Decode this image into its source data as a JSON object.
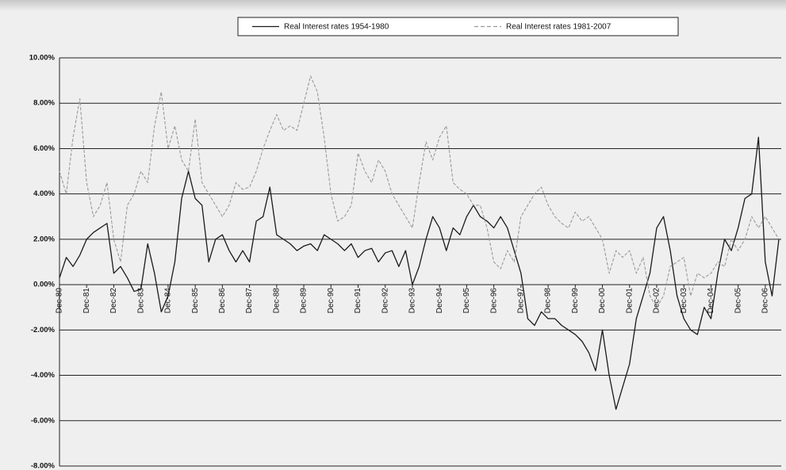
{
  "chart_data": {
    "type": "line",
    "categories": [
      "Dec-80",
      null,
      null,
      null,
      "Dec-81",
      null,
      null,
      null,
      "Dec-82",
      null,
      null,
      null,
      "Dec-83",
      null,
      null,
      null,
      "Dec-84",
      null,
      null,
      null,
      "Dec-85",
      null,
      null,
      null,
      "Dec-86",
      null,
      null,
      null,
      "Dec-87",
      null,
      null,
      null,
      "Dec-88",
      null,
      null,
      null,
      "Dec-89",
      null,
      null,
      null,
      "Dec-90",
      null,
      null,
      null,
      "Dec-91",
      null,
      null,
      null,
      "Dec-92",
      null,
      null,
      null,
      "Dec-93",
      null,
      null,
      null,
      "Dec-94",
      null,
      null,
      null,
      "Dec-95",
      null,
      null,
      null,
      "Dec-96",
      null,
      null,
      null,
      "Dec-97",
      null,
      null,
      null,
      "Dec-98",
      null,
      null,
      null,
      "Dec-99",
      null,
      null,
      null,
      "Dec-00",
      null,
      null,
      null,
      "Dec-01",
      null,
      null,
      null,
      "Dec-02",
      null,
      null,
      null,
      "Dec-03",
      null,
      null,
      null,
      "Dec-04",
      null,
      null,
      null,
      "Dec-05",
      null,
      null,
      null,
      "Dec-06",
      null,
      null
    ],
    "series": [
      {
        "name": "Real Interest rates 1954-1980",
        "color": "#1a1a1a",
        "dash": false,
        "values": [
          0.3,
          1.2,
          0.8,
          1.3,
          2.0,
          2.3,
          2.5,
          2.7,
          0.5,
          0.8,
          0.3,
          -0.3,
          -0.2,
          1.8,
          0.5,
          -1.2,
          -0.5,
          1.0,
          3.8,
          5.0,
          3.8,
          3.5,
          1.0,
          2.0,
          2.2,
          1.5,
          1.0,
          1.5,
          1.0,
          2.8,
          3.0,
          4.3,
          2.2,
          2.0,
          1.8,
          1.5,
          1.7,
          1.8,
          1.5,
          2.2,
          2.0,
          1.8,
          1.5,
          1.8,
          1.2,
          1.5,
          1.6,
          1.0,
          1.4,
          1.5,
          0.8,
          1.5,
          0.0,
          0.8,
          2.0,
          3.0,
          2.5,
          1.5,
          2.5,
          2.2,
          3.0,
          3.5,
          3.0,
          2.8,
          2.5,
          3.0,
          2.5,
          1.5,
          0.5,
          -1.5,
          -1.8,
          -1.2,
          -1.5,
          -1.5,
          -1.8,
          -2.0,
          -2.2,
          -2.5,
          -3.0,
          -3.8,
          -2.0,
          -4.0,
          -5.5,
          -4.5,
          -3.5,
          -1.5,
          -0.5,
          0.5,
          2.5,
          3.0,
          1.5,
          -0.5,
          -1.5,
          -2.0,
          -2.2,
          -1.0,
          -1.5,
          0.5,
          2.0,
          1.5,
          2.5,
          3.8,
          4.0,
          6.5,
          1.0,
          -0.5,
          2.0
        ]
      },
      {
        "name": "Real Interest rates 1981-2007",
        "color": "#9a9a9a",
        "dash": true,
        "values": [
          5.0,
          4.0,
          6.5,
          8.2,
          4.5,
          3.0,
          3.5,
          4.5,
          2.0,
          1.0,
          3.5,
          4.0,
          5.0,
          4.5,
          7.0,
          8.5,
          6.0,
          7.0,
          5.5,
          5.0,
          7.3,
          4.5,
          4.0,
          3.5,
          3.0,
          3.5,
          4.5,
          4.2,
          4.3,
          5.0,
          6.0,
          6.8,
          7.5,
          6.8,
          7.0,
          6.8,
          8.0,
          9.2,
          8.5,
          6.5,
          4.0,
          2.8,
          3.0,
          3.5,
          5.8,
          5.0,
          4.5,
          5.5,
          5.0,
          4.0,
          3.5,
          3.0,
          2.5,
          4.5,
          6.3,
          5.5,
          6.5,
          7.0,
          4.5,
          4.2,
          4.0,
          3.5,
          3.5,
          2.5,
          1.0,
          0.7,
          1.5,
          1.0,
          3.0,
          3.5,
          4.0,
          4.3,
          3.5,
          3.0,
          2.7,
          2.5,
          3.2,
          2.8,
          3.0,
          2.5,
          2.0,
          0.5,
          1.5,
          1.2,
          1.5,
          0.5,
          1.2,
          -0.5,
          -1.0,
          -0.5,
          0.8,
          1.0,
          1.2,
          -0.5,
          0.5,
          0.3,
          0.5,
          1.0,
          0.8,
          2.0,
          1.5,
          2.0,
          3.0,
          2.5,
          3.0,
          2.5,
          2.0
        ]
      }
    ],
    "ylim": [
      -8,
      10
    ],
    "yticks": [
      {
        "value": 10,
        "label": "10.00%"
      },
      {
        "value": 8,
        "label": "8.00%"
      },
      {
        "value": 6,
        "label": "6.00%"
      },
      {
        "value": 4,
        "label": "4.00%"
      },
      {
        "value": 2,
        "label": "2.00%"
      },
      {
        "value": 0,
        "label": "0.00%"
      },
      {
        "value": -2,
        "label": "-2.00%"
      },
      {
        "value": -4,
        "label": "-4.00%"
      },
      {
        "value": -6,
        "label": "-6.00%"
      },
      {
        "value": -8,
        "label": "-8.00%"
      }
    ],
    "grid": true,
    "legend": "top"
  }
}
